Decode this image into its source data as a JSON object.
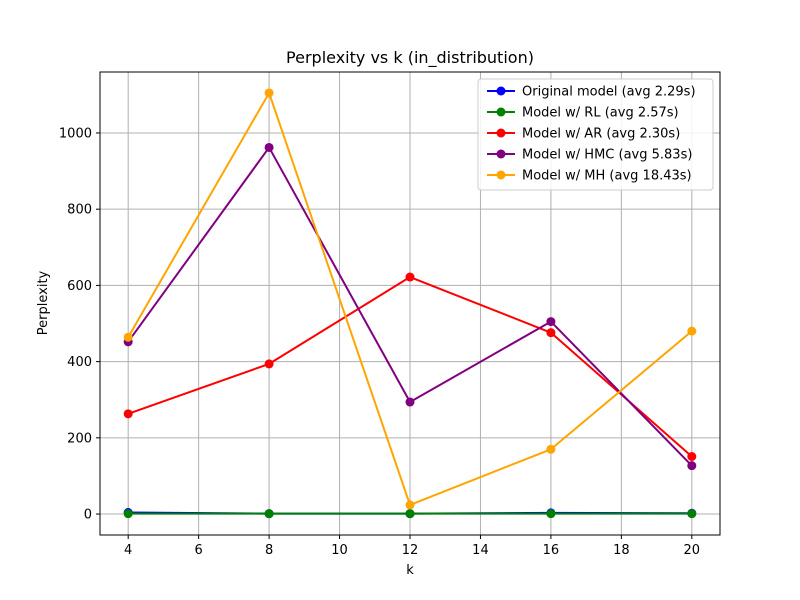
{
  "chart_data": {
    "type": "line",
    "title": "Perplexity vs k (in_distribution)",
    "xlabel": "k",
    "ylabel": "Perplexity",
    "x": [
      4,
      8,
      12,
      16,
      20
    ],
    "xlim": [
      3.2,
      20.8
    ],
    "ylim": [
      -55,
      1160
    ],
    "xticks": [
      4,
      6,
      8,
      10,
      12,
      14,
      16,
      18,
      20
    ],
    "yticks": [
      0,
      200,
      400,
      600,
      800,
      1000
    ],
    "grid": true,
    "legend_position": "top-right",
    "series": [
      {
        "name": "Original model (avg 2.29s)",
        "color": "#0000ff",
        "values": [
          4,
          1,
          1,
          3,
          2
        ]
      },
      {
        "name": "Model w/ RL (avg 2.57s)",
        "color": "#008000",
        "values": [
          1,
          1,
          1,
          1,
          1
        ]
      },
      {
        "name": "Model w/ AR (avg 2.30s)",
        "color": "#ff0000",
        "values": [
          263,
          394,
          622,
          476,
          151
        ]
      },
      {
        "name": "Model w/ HMC (avg 5.83s)",
        "color": "#800080",
        "values": [
          452,
          962,
          294,
          505,
          127
        ]
      },
      {
        "name": "Model w/ MH (avg 18.43s)",
        "color": "#ffa500",
        "values": [
          464,
          1105,
          24,
          170,
          480
        ]
      }
    ]
  }
}
